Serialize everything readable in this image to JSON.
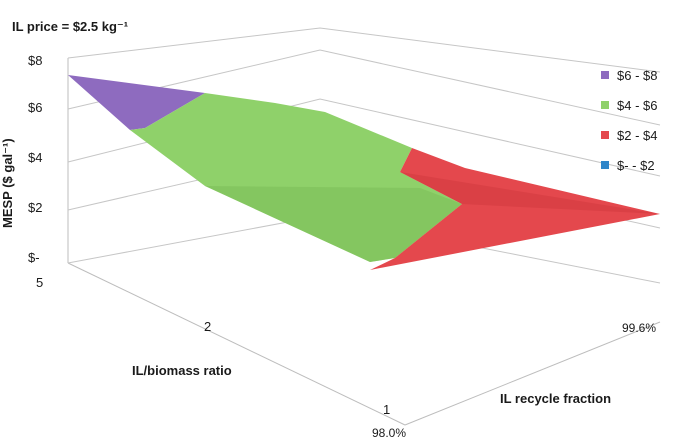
{
  "chart_data": {
    "type": "surface",
    "title": "IL price = $2.5 kg⁻¹",
    "zlabel": "MESP ($ gal⁻¹)",
    "xlabel": "IL/biomass ratio",
    "ylabel": "IL recycle fraction",
    "z_ticks": [
      "$-",
      "$2",
      "$4",
      "$6",
      "$8"
    ],
    "z_tick_values": [
      0,
      2,
      4,
      6,
      8
    ],
    "zlim": [
      0,
      8
    ],
    "x_ticks": [
      "5",
      "2",
      "1"
    ],
    "y_ticks": [
      "98.0%",
      "99.6%"
    ],
    "grid": true,
    "legend_position": "right",
    "legend": [
      {
        "label": "$6 - $8",
        "color": "#8e6bbf"
      },
      {
        "label": "$4 - $6",
        "color": "#8fd16a"
      },
      {
        "label": "$2 - $4",
        "color": "#e4484d"
      },
      {
        "label": "$- - $2",
        "color": "#2f86c9"
      }
    ]
  }
}
